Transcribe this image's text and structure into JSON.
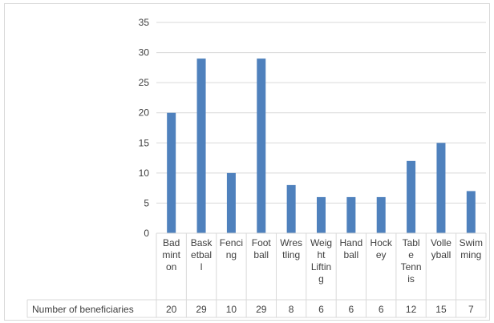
{
  "chart_data": {
    "type": "bar",
    "categories": [
      [
        "Bad",
        "mint",
        "on"
      ],
      [
        "Bask",
        "etbal",
        "l"
      ],
      [
        "Fenci",
        "ng"
      ],
      [
        "Foot",
        "ball"
      ],
      [
        "Wres",
        "tling"
      ],
      [
        "Weig",
        "ht",
        "Liftin",
        "g"
      ],
      [
        "Hand",
        "ball"
      ],
      [
        "Hock",
        "ey"
      ],
      [
        "Tabl",
        "e",
        "Tenn",
        "is"
      ],
      [
        "Volle",
        "yball"
      ],
      [
        "Swim",
        "ming"
      ]
    ],
    "series": [
      {
        "name": "Number of  beneficiaries",
        "values": [
          20,
          29,
          10,
          29,
          8,
          6,
          6,
          6,
          12,
          15,
          7
        ]
      }
    ],
    "ylim": [
      0,
      35
    ],
    "yticks": [
      0,
      5,
      10,
      15,
      20,
      25,
      30,
      35
    ],
    "grid": true,
    "data_table": true,
    "bar_color": "#4f81bd",
    "grid_color": "#d9d9d9",
    "title": "",
    "xlabel": "",
    "ylabel": ""
  }
}
